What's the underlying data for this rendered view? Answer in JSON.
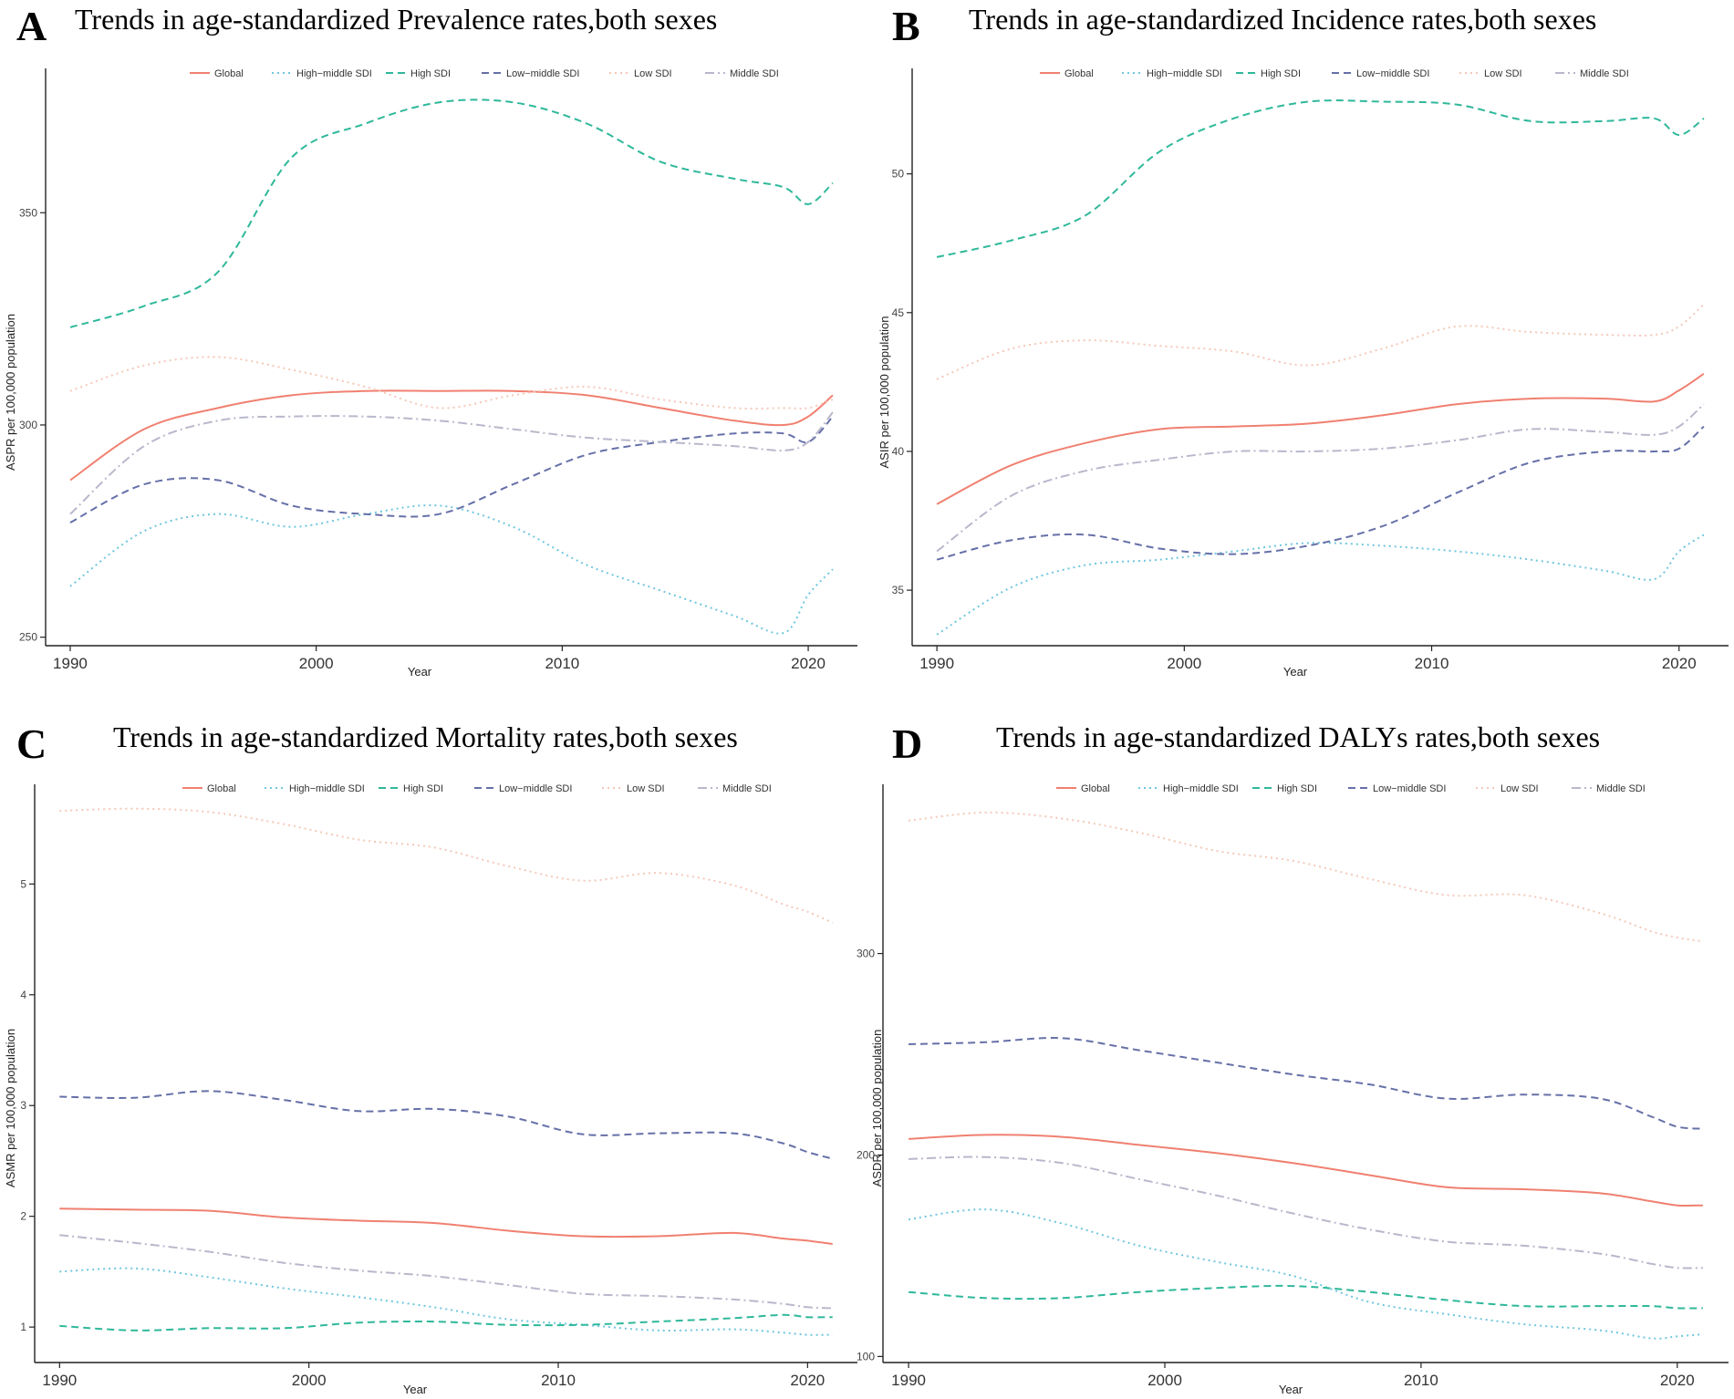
{
  "series_styles": {
    "Global": {
      "color": "#F08070",
      "dash": ""
    },
    "High−middle SDI": {
      "color": "#6FC7DD",
      "dash": "2,4"
    },
    "High SDI": {
      "color": "#2FB89A",
      "dash": "8,5"
    },
    "Low−middle SDI": {
      "color": "#6670A8",
      "dash": "8,5"
    },
    "Low SDI": {
      "color": "#F4C8B8",
      "dash": "2,4"
    },
    "Middle SDI": {
      "color": "#B8B8CC",
      "dash": "10,4,2,4"
    }
  },
  "chart_data": [
    {
      "type": "line",
      "panel_letter": "A",
      "title": "Trends in age-standardized Prevalence rates,both sexes",
      "xlabel": "Year",
      "ylabel": "ASPR per 100,000 population",
      "xlim": [
        1989,
        2022
      ],
      "ylim": [
        248,
        384
      ],
      "x_ticks": [
        1990,
        2000,
        2010,
        2020
      ],
      "y_ticks": [
        250,
        300,
        350
      ],
      "legend_position": "top",
      "years": [
        1990,
        1993,
        1996,
        1999,
        2002,
        2005,
        2008,
        2011,
        2014,
        2017,
        2019,
        2020,
        2021
      ],
      "series": [
        {
          "name": "Global",
          "values": [
            287,
            299,
            304,
            307,
            308,
            308,
            308,
            307,
            304,
            301,
            300,
            302,
            307
          ]
        },
        {
          "name": "High−middle SDI",
          "values": [
            262,
            275,
            279,
            276,
            279,
            281,
            276,
            267,
            261,
            255,
            251,
            260,
            266
          ]
        },
        {
          "name": "High SDI",
          "values": [
            323,
            328,
            336,
            363,
            371,
            376,
            376,
            371,
            362,
            358,
            356,
            352,
            357
          ]
        },
        {
          "name": "Low−middle SDI",
          "values": [
            277,
            286,
            287,
            281,
            279,
            279,
            286,
            293,
            296,
            298,
            298,
            296,
            302
          ]
        },
        {
          "name": "Low SDI",
          "values": [
            308,
            314,
            316,
            313,
            309,
            304,
            307,
            309,
            306,
            304,
            304,
            304,
            306
          ]
        },
        {
          "name": "Middle SDI",
          "values": [
            279,
            295,
            301,
            302,
            302,
            301,
            299,
            297,
            296,
            295,
            294,
            296,
            303
          ]
        }
      ]
    },
    {
      "type": "line",
      "panel_letter": "B",
      "title": "Trends in age-standardized Incidence rates,both sexes",
      "xlabel": "Year",
      "ylabel": "ASIR per 100,000 population",
      "xlim": [
        1989,
        2022
      ],
      "ylim": [
        33,
        53.8
      ],
      "x_ticks": [
        1990,
        2000,
        2010,
        2020
      ],
      "y_ticks": [
        35,
        40,
        45,
        50
      ],
      "legend_position": "top",
      "years": [
        1990,
        1993,
        1996,
        1999,
        2002,
        2005,
        2008,
        2011,
        2014,
        2017,
        2019,
        2020,
        2021
      ],
      "series": [
        {
          "name": "Global",
          "values": [
            38.1,
            39.5,
            40.3,
            40.8,
            40.9,
            41.0,
            41.3,
            41.7,
            41.9,
            41.9,
            41.8,
            42.2,
            42.8
          ]
        },
        {
          "name": "High−middle SDI",
          "values": [
            33.4,
            35.1,
            35.9,
            36.1,
            36.4,
            36.7,
            36.6,
            36.4,
            36.1,
            35.7,
            35.4,
            36.4,
            37.0
          ]
        },
        {
          "name": "High SDI",
          "values": [
            47.0,
            47.6,
            48.5,
            50.8,
            52.0,
            52.6,
            52.6,
            52.5,
            51.9,
            51.9,
            52.0,
            51.4,
            52.0
          ]
        },
        {
          "name": "Low−middle SDI",
          "values": [
            36.1,
            36.8,
            37.0,
            36.5,
            36.3,
            36.6,
            37.3,
            38.5,
            39.6,
            40.0,
            40.0,
            40.1,
            40.9
          ]
        },
        {
          "name": "Low SDI",
          "values": [
            42.6,
            43.7,
            44.0,
            43.8,
            43.6,
            43.1,
            43.7,
            44.5,
            44.3,
            44.2,
            44.2,
            44.5,
            45.3
          ]
        },
        {
          "name": "Middle SDI",
          "values": [
            36.4,
            38.4,
            39.3,
            39.7,
            40.0,
            40.0,
            40.1,
            40.4,
            40.8,
            40.7,
            40.6,
            40.9,
            41.7
          ]
        }
      ]
    },
    {
      "type": "line",
      "panel_letter": "C",
      "title": "Trends in age-standardized Mortality rates,both sexes",
      "xlabel": "Year",
      "ylabel": "ASMR per 100,000 population",
      "xlim": [
        1989,
        2022
      ],
      "ylim": [
        0.68,
        5.9
      ],
      "x_ticks": [
        1990,
        2000,
        2010,
        2020
      ],
      "y_ticks": [
        1,
        2,
        3,
        4,
        5
      ],
      "legend_position": "top",
      "years": [
        1990,
        1993,
        1996,
        1999,
        2002,
        2005,
        2008,
        2011,
        2014,
        2017,
        2019,
        2020,
        2021
      ],
      "series": [
        {
          "name": "Global",
          "values": [
            2.07,
            2.06,
            2.05,
            1.99,
            1.96,
            1.94,
            1.87,
            1.82,
            1.82,
            1.85,
            1.8,
            1.78,
            1.75
          ]
        },
        {
          "name": "High−middle SDI",
          "values": [
            1.5,
            1.53,
            1.45,
            1.35,
            1.27,
            1.18,
            1.07,
            1.02,
            0.97,
            0.98,
            0.95,
            0.93,
            0.93
          ]
        },
        {
          "name": "High SDI",
          "values": [
            1.01,
            0.97,
            0.99,
            0.99,
            1.04,
            1.05,
            1.02,
            1.02,
            1.05,
            1.08,
            1.11,
            1.09,
            1.09
          ]
        },
        {
          "name": "Low−middle SDI",
          "values": [
            3.08,
            3.07,
            3.13,
            3.05,
            2.95,
            2.97,
            2.9,
            2.74,
            2.75,
            2.75,
            2.66,
            2.58,
            2.52
          ]
        },
        {
          "name": "Low SDI",
          "values": [
            5.66,
            5.68,
            5.65,
            5.54,
            5.4,
            5.33,
            5.16,
            5.03,
            5.1,
            4.99,
            4.82,
            4.75,
            4.65
          ]
        },
        {
          "name": "Middle SDI",
          "values": [
            1.83,
            1.76,
            1.68,
            1.58,
            1.51,
            1.46,
            1.38,
            1.3,
            1.28,
            1.25,
            1.21,
            1.18,
            1.17
          ]
        }
      ]
    },
    {
      "type": "line",
      "panel_letter": "D",
      "title": "Trends in age-standardized DALYs rates,both sexes",
      "xlabel": "Year",
      "ylabel": "ASDR per 100,000 population",
      "xlim": [
        1989,
        2022
      ],
      "ylim": [
        97,
        384
      ],
      "x_ticks": [
        1990,
        2000,
        2010,
        2020
      ],
      "y_ticks": [
        100,
        200,
        300
      ],
      "legend_position": "top",
      "years": [
        1990,
        1993,
        1996,
        1999,
        2002,
        2005,
        2008,
        2011,
        2014,
        2017,
        2019,
        2020,
        2021
      ],
      "series": [
        {
          "name": "Global",
          "values": [
            208,
            210,
            209,
            205,
            201,
            196,
            190,
            184,
            183,
            181,
            177,
            175,
            175
          ]
        },
        {
          "name": "High−middle SDI",
          "values": [
            168,
            173,
            166,
            155,
            147,
            140,
            127,
            121,
            116,
            113,
            109,
            110,
            111
          ]
        },
        {
          "name": "High SDI",
          "values": [
            132,
            129,
            129,
            132,
            134,
            135,
            132,
            128,
            125,
            125,
            125,
            124,
            124
          ]
        },
        {
          "name": "Low−middle SDI",
          "values": [
            255,
            256,
            258,
            252,
            246,
            240,
            235,
            228,
            230,
            228,
            219,
            214,
            213
          ]
        },
        {
          "name": "Low SDI",
          "values": [
            366,
            370,
            367,
            360,
            351,
            346,
            337,
            329,
            329,
            320,
            311,
            308,
            306
          ]
        },
        {
          "name": "Middle SDI",
          "values": [
            198,
            199,
            196,
            188,
            180,
            171,
            163,
            157,
            155,
            151,
            146,
            144,
            144
          ]
        }
      ]
    }
  ]
}
